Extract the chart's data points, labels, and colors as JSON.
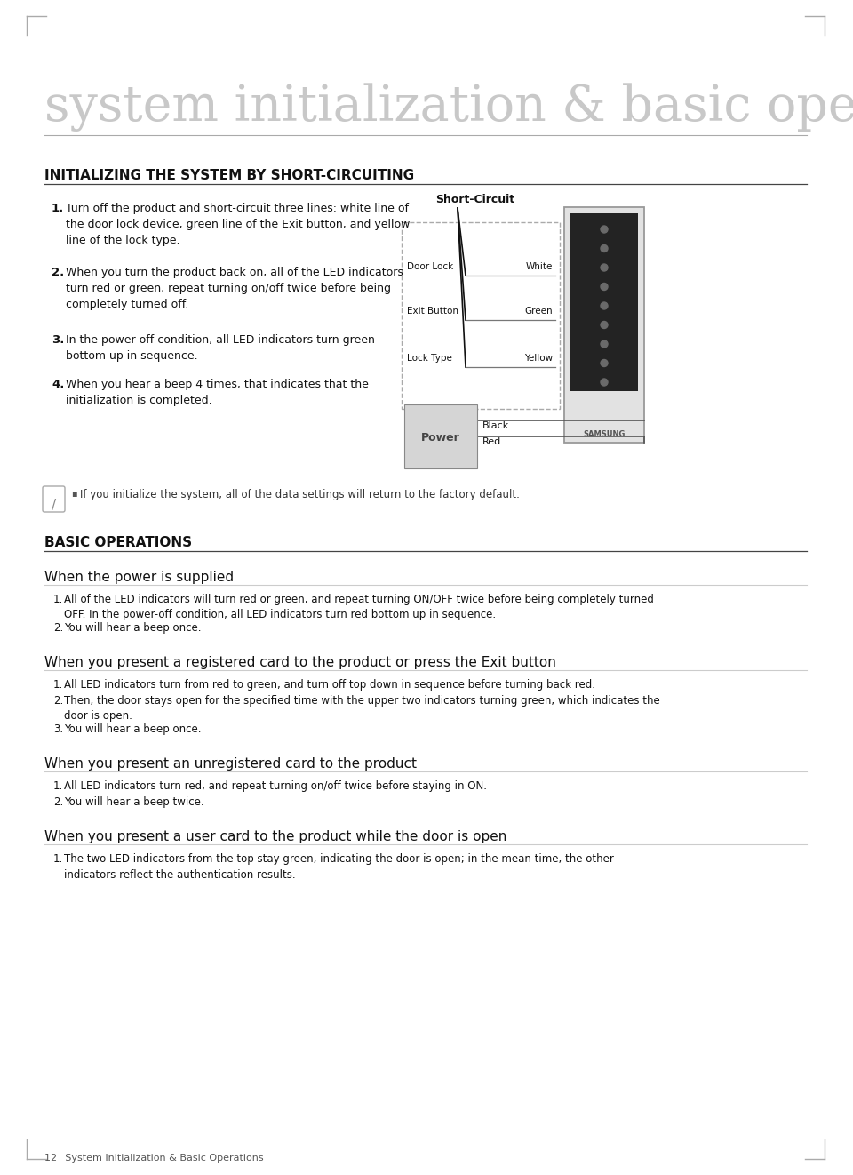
{
  "title": "system initialization & basic operations",
  "section1_title": "INITIALIZING THE SYSTEM BY SHORT-CIRCUITING",
  "section2_title": "BASIC OPERATIONS",
  "sub1_title": "When the power is supplied",
  "sub2_title": "When you present a registered card to the product or press the Exit button",
  "sub3_title": "When you present an unregistered card to the product",
  "sub4_title": "When you present a user card to the product while the door is open",
  "step1": "Turn off the product and short-circuit three lines: white line of\nthe door lock device, green line of the Exit button, and yellow\nline of the lock type.",
  "step2": "When you turn the product back on, all of the LED indicators\nturn red or green, repeat turning on/off twice before being\ncompletely turned off.",
  "step3": "In the power-off condition, all LED indicators turn green\nbottom up in sequence.",
  "step4": "When you hear a beep 4 times, that indicates that the\ninitialization is completed.",
  "note": "If you initialize the system, all of the data settings will return to the factory default.",
  "sub1_items": [
    "All of the LED indicators will turn red or green, and repeat turning ON/OFF twice before being completely turned\nOFF. In the power-off condition, all LED indicators turn red bottom up in sequence.",
    "You will hear a beep once."
  ],
  "sub2_items": [
    "All LED indicators turn from red to green, and turn off top down in sequence before turning back red.",
    "Then, the door stays open for the specified time with the upper two indicators turning green, which indicates the\ndoor is open.",
    "You will hear a beep once."
  ],
  "sub3_items": [
    "All LED indicators turn red, and repeat turning on/off twice before staying in ON.",
    "You will hear a beep twice."
  ],
  "sub4_items": [
    "The two LED indicators from the top stay green, indicating the door is open; in the mean time, the other\nindicators reflect the authentication results."
  ],
  "footer": "12_ System Initialization & Basic Operations",
  "bg_color": "#ffffff"
}
